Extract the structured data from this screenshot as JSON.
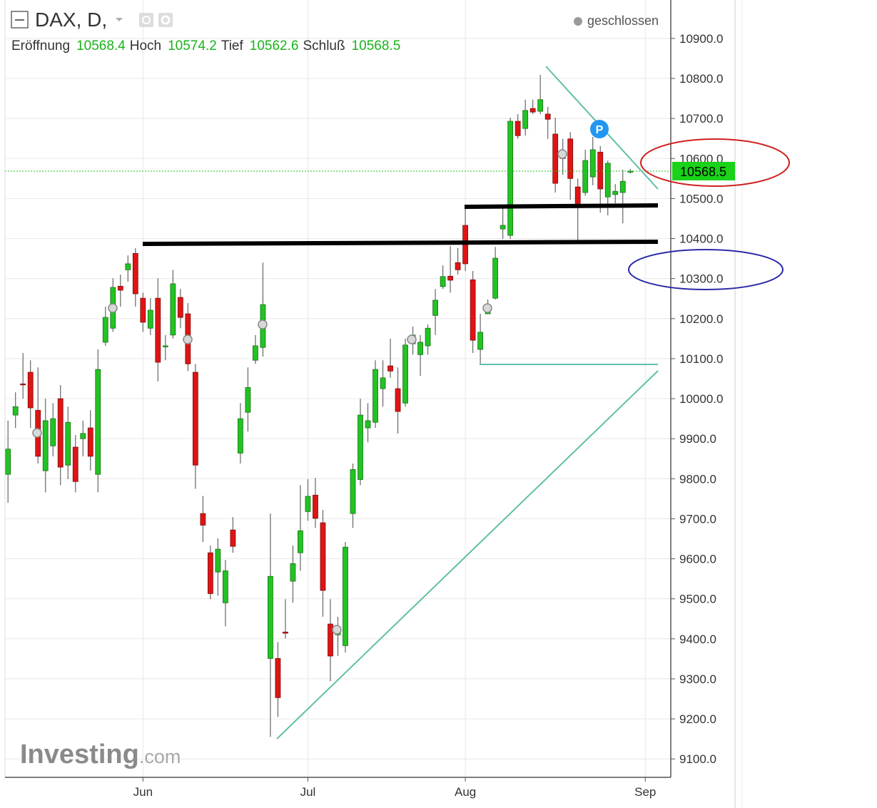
{
  "chart_data": {
    "type": "candlestick",
    "title": "DAX, D,",
    "status": "geschlossen",
    "legend": [
      {
        "label": "Eröffnung",
        "value": 10568.4
      },
      {
        "label": "Hoch",
        "value": 10574.2
      },
      {
        "label": "Tief",
        "value": 10562.6
      },
      {
        "label": "Schluß",
        "value": 10568.5
      }
    ],
    "last_price": 10568.5,
    "marker": "P",
    "watermark": "Investing",
    "watermark_suffix": ".com",
    "up_color": "#22c322",
    "down_color": "#e01414",
    "grid": true,
    "categories": [
      null,
      null,
      null,
      null,
      null,
      null,
      null,
      null,
      null,
      null,
      null,
      null,
      null,
      null,
      null,
      null,
      null,
      null,
      null,
      null,
      null,
      null,
      null,
      null,
      null,
      null,
      null,
      null,
      null,
      null,
      null,
      null,
      null,
      null,
      null,
      null,
      null,
      null,
      null,
      null,
      null,
      null,
      null,
      null,
      null,
      null,
      null,
      null,
      null,
      null,
      null,
      null,
      null,
      null,
      null,
      null,
      null,
      null,
      null,
      null,
      null,
      null,
      null,
      null,
      null,
      null,
      null,
      null,
      null,
      null,
      null,
      null,
      null,
      null,
      null,
      null,
      null,
      null,
      null,
      null,
      null,
      null,
      null,
      null
    ],
    "open": [
      9811,
      9959,
      10037,
      10066,
      9971,
      9820,
      9882,
      10000,
      9834,
      9879,
      9900,
      9927,
      9811,
      10141,
      10176,
      10281,
      10322,
      10363,
      10251,
      10176,
      10251,
      10130,
      10159,
      10253,
      10212,
      10066,
      9713,
      9615,
      9567,
      9490,
      9672,
      9864,
      9966,
      10096,
      10128,
      9351,
      9351,
      9417,
      9544,
      9615,
      9718,
      9759,
      9690,
      9437,
      9410,
      9383,
      9713,
      9798,
      9927,
      9941,
      10025,
      10082,
      10025,
      9989,
      10137,
      10110,
      10132,
      10208,
      10280,
      10306,
      10340,
      10433,
      10297,
      10123,
      10212,
      10251,
      10424,
      10408,
      10693,
      10675,
      10725,
      10718,
      10711,
      10661,
      10618,
      10649,
      10529,
      10515,
      10554,
      10616,
      10504,
      10510,
      10515,
      10568.4
    ],
    "high": [
      9945,
      10016,
      10114,
      10096,
      10078,
      10000,
      9989,
      10034,
      9980,
      9909,
      9945,
      9971,
      10123,
      10230,
      10301,
      10310,
      10358,
      10376,
      10265,
      10251,
      10301,
      10159,
      10322,
      10274,
      10239,
      10087,
      9757,
      9633,
      9651,
      9597,
      9704,
      9989,
      10078,
      10159,
      10340,
      9713,
      9392,
      9499,
      9633,
      9784,
      9799,
      9802,
      9722,
      9499,
      9455,
      9642,
      9838,
      10000,
      9989,
      10096,
      10096,
      10150,
      10078,
      10150,
      10180,
      10159,
      10185,
      10274,
      10333,
      10381,
      10376,
      10483,
      10319,
      10212,
      10248,
      10379,
      10479,
      10702,
      10711,
      10747,
      10747,
      10809,
      10729,
      10702,
      10649,
      10666,
      10550,
      10622,
      10654,
      10631,
      10595,
      10536,
      10572,
      10574.2
    ],
    "low": [
      9740,
      9927,
      10000,
      9927,
      9838,
      9766,
      9856,
      9784,
      9799,
      9766,
      9856,
      9820,
      9766,
      10132,
      10167,
      10230,
      10292,
      10230,
      10167,
      10159,
      10043,
      10096,
      10150,
      10176,
      10069,
      9775,
      9642,
      9499,
      9508,
      9431,
      9615,
      9838,
      9918,
      10087,
      10105,
      9155,
      9205,
      9401,
      9490,
      9570,
      9695,
      9677,
      9455,
      9294,
      9357,
      9366,
      9677,
      9784,
      9891,
      9927,
      9980,
      10052,
      9913,
      9980,
      10110,
      10057,
      10110,
      10159,
      10274,
      10265,
      10310,
      10319,
      10114,
      10087,
      10212,
      10248,
      10399,
      10399,
      10649,
      10657,
      10711,
      10711,
      10649,
      10515,
      10559,
      10497,
      10390,
      10507,
      10533,
      10465,
      10458,
      10488,
      10438,
      10562.6
    ],
    "close": [
      9874,
      9980,
      10035,
      9977,
      9856,
      9945,
      9950,
      9829,
      9941,
      9793,
      9913,
      9856,
      10073,
      10203,
      10278,
      10271,
      10337,
      10262,
      10191,
      10221,
      10091,
      10132,
      10287,
      10203,
      10087,
      9834,
      9684,
      9513,
      9624,
      9570,
      9631,
      9950,
      10028,
      10132,
      10235,
      9556,
      9253,
      9414,
      9588,
      9670,
      9756,
      9701,
      9521,
      9357,
      9428,
      9629,
      9823,
      9959,
      9945,
      10073,
      10052,
      10069,
      9968,
      10134,
      10159,
      10141,
      10176,
      10246,
      10305,
      10296,
      10322,
      10337,
      10146,
      10166,
      10233,
      10351,
      10433,
      10693,
      10657,
      10720,
      10716,
      10747,
      10698,
      10538,
      10600,
      10550,
      10479,
      10595,
      10622,
      10524,
      10588,
      10518,
      10543,
      10568.5
    ],
    "xlim": [
      -0.4,
      88.4
    ],
    "xticks": [
      {
        "value": 18,
        "label": "Jun"
      },
      {
        "value": 40,
        "label": "Jul"
      },
      {
        "value": 61,
        "label": "Aug"
      },
      {
        "value": 85,
        "label": "Sep"
      }
    ],
    "ylim": [
      9054,
      10996
    ],
    "yticks": [
      {
        "value": 9100,
        "label": "9100.0"
      },
      {
        "value": 9200,
        "label": "9200.0"
      },
      {
        "value": 9300,
        "label": "9300.0"
      },
      {
        "value": 9400,
        "label": "9400.0"
      },
      {
        "value": 9500,
        "label": "9500.0"
      },
      {
        "value": 9600,
        "label": "9600.0"
      },
      {
        "value": 9700,
        "label": "9700.0"
      },
      {
        "value": 9800,
        "label": "9800.0"
      },
      {
        "value": 9900,
        "label": "9900.0"
      },
      {
        "value": 10000,
        "label": "10000.0"
      },
      {
        "value": 10100,
        "label": "10100.0"
      },
      {
        "value": 10200,
        "label": "10200.0"
      },
      {
        "value": 10300,
        "label": "10300.0"
      },
      {
        "value": 10400,
        "label": "10400.0"
      },
      {
        "value": 10500,
        "label": "10500.0"
      },
      {
        "value": 10600,
        "label": "10600.0"
      },
      {
        "value": 10700,
        "label": "10700.0"
      },
      {
        "value": 10800,
        "label": "10800.0"
      },
      {
        "value": 10900,
        "label": "10900.0"
      }
    ]
  }
}
